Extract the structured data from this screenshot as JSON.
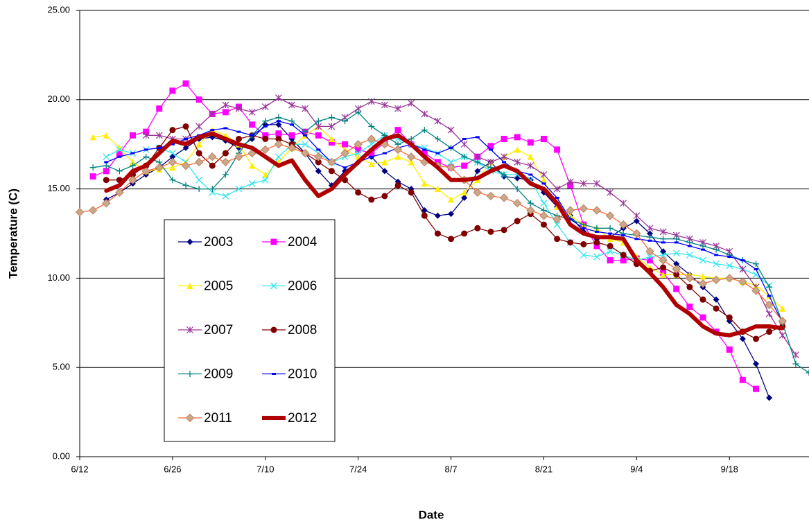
{
  "chart_data": {
    "type": "line",
    "x_label": "Date",
    "y_label": "Temperature (C)",
    "categories": [
      "6/12",
      null,
      null,
      null,
      null,
      null,
      null,
      "6/26",
      null,
      null,
      null,
      null,
      null,
      null,
      "7/10",
      null,
      null,
      null,
      null,
      null,
      null,
      "7/24",
      null,
      null,
      null,
      null,
      null,
      null,
      "8/7",
      null,
      null,
      null,
      null,
      null,
      null,
      "8/21",
      null,
      null,
      null,
      null,
      null,
      null,
      "9/4",
      null,
      null,
      null,
      null,
      null,
      null,
      "9/18",
      null,
      null,
      null,
      null,
      null,
      null
    ],
    "ylim": [
      0,
      25
    ],
    "yticks": [
      {
        "value": 0,
        "label": "0.00"
      },
      {
        "value": 5,
        "label": "5.00"
      },
      {
        "value": 10,
        "label": "10.00"
      },
      {
        "value": 15,
        "label": "15.00"
      },
      {
        "value": 20,
        "label": "20.00"
      },
      {
        "value": 25,
        "label": "25.00"
      }
    ],
    "grid": true,
    "series": [
      {
        "name": "2003",
        "color": "#000080",
        "marker": "diamond",
        "values": [
          null,
          null,
          14.4,
          14.8,
          15.3,
          15.8,
          16.2,
          16.8,
          17.3,
          17.8,
          17.9,
          17.7,
          17.3,
          17.8,
          18.6,
          18.6,
          17.8,
          17.0,
          16.0,
          15.2,
          16.0,
          16.5,
          16.8,
          16.0,
          15.4,
          15.0,
          13.8,
          13.5,
          13.6,
          14.5,
          16.0,
          16.5,
          15.7,
          15.6,
          15.5,
          14.8,
          14.0,
          13.5,
          12.6,
          12.2,
          12.3,
          12.8,
          13.2,
          12.5,
          11.5,
          10.8,
          10.2,
          9.5,
          8.8,
          7.6,
          6.6,
          5.2,
          3.3,
          null,
          null,
          null
        ]
      },
      {
        "name": "2004",
        "color": "#ff00ff",
        "marker": "square",
        "values": [
          null,
          15.7,
          16.0,
          17.0,
          18.0,
          18.2,
          19.5,
          20.5,
          20.9,
          20.0,
          19.2,
          19.3,
          19.6,
          18.6,
          18.0,
          18.1,
          18.0,
          18.2,
          18.0,
          17.6,
          17.5,
          17.2,
          17.0,
          17.6,
          18.3,
          17.5,
          17.0,
          16.5,
          16.2,
          16.3,
          16.8,
          17.4,
          17.8,
          17.9,
          17.6,
          17.8,
          17.2,
          15.2,
          13.0,
          11.8,
          11.0,
          11.0,
          11.1,
          11.0,
          10.3,
          9.4,
          8.4,
          7.8,
          7.0,
          6.0,
          4.3,
          3.8,
          null,
          null,
          null,
          null
        ]
      },
      {
        "name": "2005",
        "color": "#ffee00",
        "marker": "triangle",
        "values": [
          null,
          17.9,
          18.0,
          17.3,
          16.5,
          16.0,
          16.1,
          16.2,
          16.5,
          17.5,
          18.3,
          18.0,
          17.5,
          16.3,
          15.8,
          16.5,
          17.3,
          18.0,
          18.5,
          17.8,
          17.2,
          16.8,
          16.4,
          16.5,
          16.8,
          16.5,
          15.3,
          15.0,
          14.4,
          14.8,
          15.5,
          16.5,
          16.8,
          17.2,
          16.8,
          15.5,
          14.0,
          13.5,
          13.0,
          12.8,
          12.2,
          12.0,
          11.2,
          10.6,
          10.2,
          10.2,
          10.2,
          10.1,
          10.0,
          10.0,
          9.8,
          9.6,
          9.0,
          8.3,
          null,
          null
        ]
      },
      {
        "name": "2006",
        "color": "#33e6f0",
        "marker": "x",
        "values": [
          null,
          null,
          16.8,
          17.2,
          17.0,
          17.2,
          17.3,
          17.0,
          16.5,
          15.5,
          14.8,
          14.6,
          15.0,
          15.3,
          15.5,
          16.8,
          17.5,
          17.5,
          17.0,
          16.5,
          16.8,
          17.0,
          17.5,
          18.0,
          17.8,
          17.5,
          17.3,
          17.0,
          16.5,
          16.8,
          16.5,
          16.0,
          15.8,
          15.8,
          15.5,
          14.2,
          13.0,
          12.0,
          11.3,
          11.2,
          11.5,
          11.3,
          11.0,
          11.2,
          11.3,
          11.4,
          11.3,
          11.0,
          10.8,
          10.7,
          10.5,
          10.2,
          9.6,
          null,
          null,
          null
        ]
      },
      {
        "name": "2007",
        "color": "#993399",
        "marker": "star",
        "values": [
          null,
          null,
          null,
          null,
          null,
          18.0,
          18.0,
          17.8,
          17.8,
          18.5,
          19.2,
          19.7,
          19.5,
          19.3,
          19.6,
          20.1,
          19.7,
          19.5,
          18.5,
          18.5,
          19.0,
          19.5,
          19.9,
          19.7,
          19.5,
          19.8,
          19.2,
          18.8,
          18.3,
          17.5,
          16.8,
          16.5,
          16.8,
          16.5,
          16.3,
          15.8,
          15.0,
          15.4,
          15.3,
          15.3,
          14.8,
          14.2,
          13.5,
          12.8,
          12.6,
          12.4,
          12.2,
          12.0,
          11.8,
          11.5,
          10.5,
          9.5,
          8.0,
          6.8,
          5.7,
          null
        ]
      },
      {
        "name": "2008",
        "color": "#800000",
        "marker": "circle",
        "values": [
          null,
          null,
          15.5,
          15.5,
          15.8,
          16.3,
          17.3,
          18.3,
          18.5,
          17.0,
          16.3,
          17.0,
          17.8,
          18.0,
          17.8,
          17.8,
          17.5,
          17.0,
          16.5,
          16.0,
          15.5,
          14.8,
          14.4,
          14.6,
          15.2,
          14.8,
          13.5,
          12.5,
          12.2,
          12.5,
          12.8,
          12.6,
          12.7,
          13.2,
          13.6,
          13.0,
          12.2,
          12.0,
          11.9,
          12.0,
          11.8,
          11.3,
          10.8,
          10.4,
          10.6,
          10.2,
          9.5,
          8.8,
          8.3,
          7.8,
          7.0,
          6.6,
          7.0,
          7.3,
          null,
          null
        ]
      },
      {
        "name": "2009",
        "color": "#008080",
        "marker": "plus",
        "values": [
          null,
          16.2,
          16.3,
          16.0,
          16.3,
          16.8,
          16.5,
          15.5,
          15.2,
          15.0,
          15.0,
          15.8,
          17.0,
          18.0,
          18.8,
          19.0,
          18.8,
          18.2,
          18.8,
          19.0,
          18.8,
          19.3,
          18.5,
          18.0,
          17.5,
          17.8,
          18.3,
          17.8,
          17.3,
          16.8,
          16.5,
          16.2,
          15.8,
          15.0,
          14.2,
          13.8,
          13.5,
          13.3,
          13.0,
          12.8,
          12.8,
          12.5,
          12.4,
          12.3,
          12.2,
          12.2,
          12.0,
          11.8,
          11.6,
          11.3,
          11.0,
          10.8,
          9.5,
          7.5,
          5.2,
          4.7
        ]
      },
      {
        "name": "2010",
        "color": "#0000ff",
        "marker": "dash",
        "values": [
          null,
          null,
          16.5,
          16.8,
          17.0,
          17.2,
          17.3,
          17.5,
          17.8,
          18.0,
          18.3,
          18.4,
          18.2,
          18.0,
          18.5,
          18.8,
          18.6,
          18.0,
          17.2,
          16.5,
          16.2,
          16.5,
          16.8,
          17.0,
          17.3,
          17.5,
          17.2,
          17.0,
          17.3,
          17.8,
          17.9,
          17.2,
          16.5,
          16.0,
          15.8,
          15.3,
          14.5,
          13.3,
          12.8,
          12.6,
          12.5,
          12.4,
          12.2,
          12.1,
          12.0,
          12.0,
          11.8,
          11.6,
          11.3,
          11.2,
          11.0,
          10.5,
          9.0,
          7.5,
          null,
          null
        ]
      },
      {
        "name": "2011",
        "color": "#ff6633",
        "marker": "diamond-tan",
        "values": [
          13.7,
          13.8,
          14.2,
          14.8,
          15.5,
          16.0,
          16.2,
          16.5,
          16.3,
          16.5,
          16.8,
          16.5,
          16.8,
          17.0,
          17.2,
          17.5,
          17.3,
          17.0,
          16.8,
          16.5,
          17.0,
          17.5,
          17.8,
          17.5,
          17.2,
          16.8,
          16.5,
          16.3,
          16.2,
          15.5,
          14.8,
          14.6,
          14.5,
          14.2,
          13.8,
          13.5,
          13.3,
          13.8,
          13.9,
          13.8,
          13.5,
          13.0,
          12.5,
          11.5,
          11.0,
          10.5,
          10.0,
          9.7,
          9.9,
          10.0,
          9.8,
          9.3,
          8.5,
          7.6,
          null,
          null
        ]
      },
      {
        "name": "2012",
        "color": "#b00000",
        "marker": "none",
        "values": [
          null,
          null,
          14.9,
          15.2,
          16.0,
          16.3,
          17.0,
          17.7,
          17.5,
          17.9,
          18.1,
          17.8,
          17.5,
          17.3,
          16.8,
          16.3,
          16.6,
          15.5,
          14.6,
          15.0,
          15.8,
          16.5,
          17.2,
          17.8,
          18.0,
          17.5,
          16.8,
          16.2,
          15.5,
          15.5,
          15.6,
          16.0,
          16.3,
          16.0,
          15.3,
          15.0,
          14.2,
          13.0,
          12.5,
          12.3,
          12.3,
          12.2,
          11.0,
          10.3,
          9.5,
          8.5,
          8.0,
          7.3,
          6.9,
          6.8,
          7.0,
          7.3,
          7.3,
          7.2,
          null,
          null
        ]
      }
    ]
  }
}
